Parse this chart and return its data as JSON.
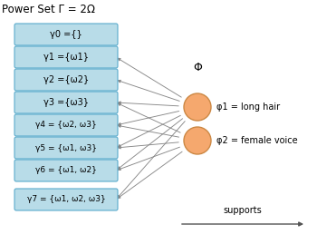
{
  "title": "Power Set Γ = 2Ω",
  "boxes": [
    "γ0 ={}",
    "γ1 ={ω1}",
    "γ2 ={ω2}",
    "γ3 ={ω3}",
    "γ4 = {ω2, ω3}",
    "γ5 = {ω1, ω3}",
    "γ6 = {ω1, ω2}",
    "γ7 = {ω1, ω2, ω3}"
  ],
  "phi_label": "Φ",
  "observations": [
    "φ1 = long hair",
    "φ2 = female voice"
  ],
  "supports_label": "supports",
  "box_color": "#b8dce8",
  "box_edge_color": "#5aabcc",
  "circle_color": "#f5a86e",
  "circle_edge_color": "#cc8844",
  "arrow_color": "#888888",
  "bg_color": "#ffffff",
  "connections_from_phi1": [
    1,
    2,
    3,
    4,
    5,
    6,
    7
  ],
  "connections_from_phi2": [
    3,
    4,
    5,
    6,
    7
  ]
}
